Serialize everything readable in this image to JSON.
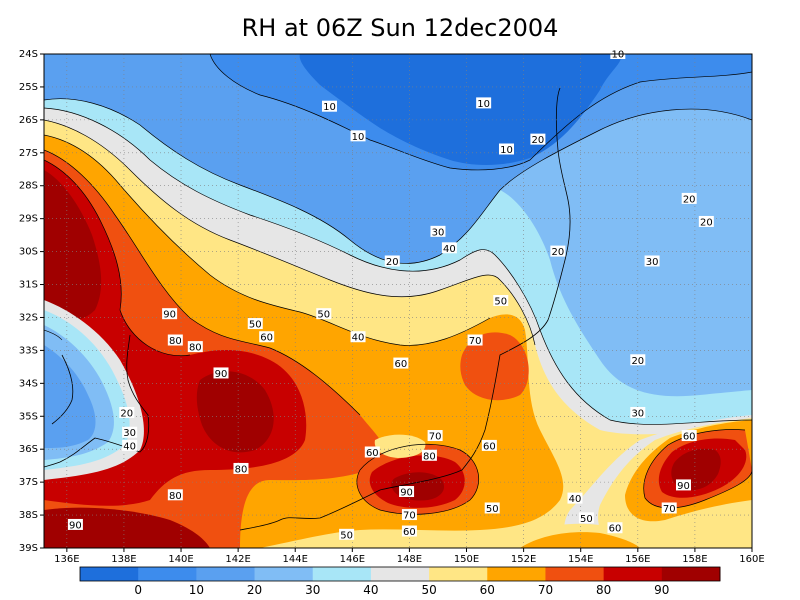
{
  "title": "RH at 06Z Sun 12dec2004",
  "map": {
    "lat_ticks": [
      "24S",
      "25S",
      "26S",
      "27S",
      "28S",
      "29S",
      "30S",
      "31S",
      "32S",
      "33S",
      "34S",
      "35S",
      "36S",
      "37S",
      "38S",
      "39S"
    ],
    "lon_ticks": [
      "136E",
      "138E",
      "140E",
      "142E",
      "144E",
      "146E",
      "148E",
      "150E",
      "152E",
      "154E",
      "156E",
      "158E",
      "160E"
    ],
    "contour_labels": [
      {
        "text": "10",
        "lon": 145.2,
        "lat": -25.6
      },
      {
        "text": "10",
        "lon": 150.6,
        "lat": -25.5
      },
      {
        "text": "10",
        "lon": 146.2,
        "lat": -26.5
      },
      {
        "text": "10",
        "lon": 151.4,
        "lat": -26.9
      },
      {
        "text": "10",
        "lon": 155.3,
        "lat": -24.0
      },
      {
        "text": "20",
        "lon": 152.5,
        "lat": -26.6
      },
      {
        "text": "20",
        "lon": 157.8,
        "lat": -28.4
      },
      {
        "text": "20",
        "lon": 158.4,
        "lat": -29.1
      },
      {
        "text": "20",
        "lon": 153.2,
        "lat": -30.0
      },
      {
        "text": "20",
        "lon": 147.4,
        "lat": -30.3
      },
      {
        "text": "20",
        "lon": 138.1,
        "lat": -34.9
      },
      {
        "text": "20",
        "lon": 156.0,
        "lat": -33.3
      },
      {
        "text": "30",
        "lon": 156.5,
        "lat": -30.3
      },
      {
        "text": "30",
        "lon": 149.0,
        "lat": -29.4
      },
      {
        "text": "30",
        "lon": 138.2,
        "lat": -35.5
      },
      {
        "text": "30",
        "lon": 156.0,
        "lat": -34.9
      },
      {
        "text": "40",
        "lon": 149.4,
        "lat": -29.9
      },
      {
        "text": "40",
        "lon": 146.2,
        "lat": -32.6
      },
      {
        "text": "40",
        "lon": 138.2,
        "lat": -35.9
      },
      {
        "text": "40",
        "lon": 153.8,
        "lat": -37.5
      },
      {
        "text": "50",
        "lon": 151.2,
        "lat": -31.5
      },
      {
        "text": "50",
        "lon": 142.6,
        "lat": -32.2
      },
      {
        "text": "50",
        "lon": 145.0,
        "lat": -31.9
      },
      {
        "text": "50",
        "lon": 150.9,
        "lat": -37.8
      },
      {
        "text": "50",
        "lon": 154.2,
        "lat": -38.1
      },
      {
        "text": "50",
        "lon": 145.8,
        "lat": -38.6
      },
      {
        "text": "60",
        "lon": 143.0,
        "lat": -32.6
      },
      {
        "text": "60",
        "lon": 147.7,
        "lat": -33.4
      },
      {
        "text": "60",
        "lon": 146.7,
        "lat": -36.1
      },
      {
        "text": "60",
        "lon": 150.8,
        "lat": -35.9
      },
      {
        "text": "60",
        "lon": 155.2,
        "lat": -38.4
      },
      {
        "text": "60",
        "lon": 148.0,
        "lat": -38.5
      },
      {
        "text": "60",
        "lon": 157.8,
        "lat": -35.6
      },
      {
        "text": "70",
        "lon": 150.3,
        "lat": -32.7
      },
      {
        "text": "70",
        "lon": 148.9,
        "lat": -35.6
      },
      {
        "text": "70",
        "lon": 148.0,
        "lat": -38.0
      },
      {
        "text": "70",
        "lon": 157.1,
        "lat": -37.8
      },
      {
        "text": "80",
        "lon": 139.8,
        "lat": -32.7
      },
      {
        "text": "80",
        "lon": 140.5,
        "lat": -32.9
      },
      {
        "text": "80",
        "lon": 148.7,
        "lat": -36.2
      },
      {
        "text": "80",
        "lon": 142.1,
        "lat": -36.6
      },
      {
        "text": "80",
        "lon": 139.8,
        "lat": -37.4
      },
      {
        "text": "90",
        "lon": 139.6,
        "lat": -31.9
      },
      {
        "text": "90",
        "lon": 141.4,
        "lat": -33.7
      },
      {
        "text": "90",
        "lon": 147.9,
        "lat": -37.3
      },
      {
        "text": "90",
        "lon": 157.6,
        "lat": -37.1
      },
      {
        "text": "90",
        "lon": 136.3,
        "lat": -38.3
      }
    ]
  },
  "colorbar": {
    "labels": [
      "0",
      "10",
      "20",
      "30",
      "40",
      "50",
      "60",
      "70",
      "80",
      "90"
    ],
    "colors": [
      "#1e6fdc",
      "#3d8ced",
      "#5aa0f0",
      "#80bdf5",
      "#a8e6f7",
      "#e6e6e6",
      "#ffe685",
      "#ffa500",
      "#f05010",
      "#c80000",
      "#a00000"
    ]
  }
}
